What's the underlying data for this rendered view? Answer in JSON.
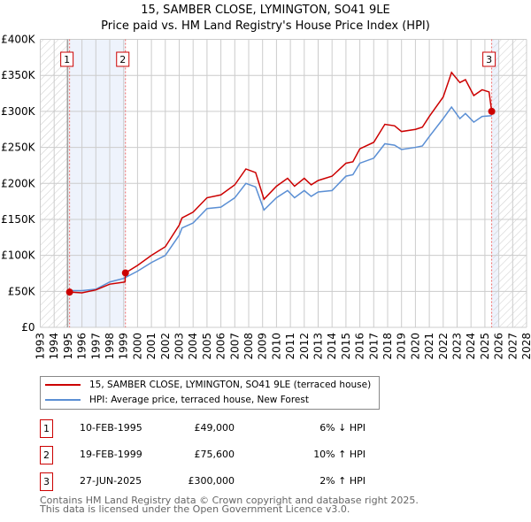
{
  "chart_data": {
    "type": "line",
    "title": "15, SAMBER CLOSE, LYMINGTON, SO41 9LE",
    "subtitle": "Price paid vs. HM Land Registry's House Price Index (HPI)",
    "xlim": [
      1993,
      2028
    ],
    "ylim": [
      0,
      400000
    ],
    "y_ticks": [
      {
        "v": 0,
        "label": "£0"
      },
      {
        "v": 50000,
        "label": "£50K"
      },
      {
        "v": 100000,
        "label": "£100K"
      },
      {
        "v": 150000,
        "label": "£150K"
      },
      {
        "v": 200000,
        "label": "£200K"
      },
      {
        "v": 250000,
        "label": "£250K"
      },
      {
        "v": 300000,
        "label": "£300K"
      },
      {
        "v": 350000,
        "label": "£350K"
      },
      {
        "v": 400000,
        "label": "£400K"
      }
    ],
    "x_ticks": [
      "1993",
      "1994",
      "1995",
      "1996",
      "1997",
      "1998",
      "1999",
      "2000",
      "2001",
      "2002",
      "2003",
      "2004",
      "2005",
      "2006",
      "2007",
      "2008",
      "2009",
      "2010",
      "2011",
      "2012",
      "2013",
      "2014",
      "2015",
      "2016",
      "2017",
      "2018",
      "2019",
      "2020",
      "2021",
      "2022",
      "2023",
      "2024",
      "2025",
      "2026",
      "2027",
      "2028"
    ],
    "grid": true,
    "series": [
      {
        "name": "15, SAMBER CLOSE, LYMINGTON, SO41 9LE (terraced house)",
        "color": "#cc0000",
        "x": [
          1995.11,
          1996,
          1997,
          1998,
          1999.1,
          1999.13,
          2000,
          2001,
          2002,
          2003,
          2003.2,
          2004,
          2005,
          2006,
          2007,
          2007.8,
          2008.5,
          2009.1,
          2010,
          2010.8,
          2011.3,
          2012,
          2012.5,
          2013,
          2014,
          2015,
          2015.5,
          2016,
          2017,
          2017.8,
          2018.5,
          2019,
          2020,
          2020.5,
          2021,
          2022,
          2022.6,
          2023.2,
          2023.6,
          2024.2,
          2024.8,
          2025.3,
          2025.49
        ],
        "y": [
          49000,
          48000,
          52000,
          60000,
          63000,
          75600,
          86000,
          100000,
          112000,
          142000,
          152000,
          160000,
          180000,
          184000,
          198000,
          220000,
          215000,
          178000,
          196000,
          207000,
          196000,
          207000,
          198000,
          204000,
          210000,
          228000,
          230000,
          248000,
          257000,
          282000,
          280000,
          272000,
          275000,
          278000,
          293000,
          320000,
          354000,
          340000,
          344000,
          322000,
          330000,
          327000,
          300000
        ]
      },
      {
        "name": "HPI: Average price, terraced house, New Forest",
        "color": "#5b8fd4",
        "x": [
          1995.11,
          1996,
          1997,
          1998,
          1999,
          2000,
          2001,
          2002,
          2003,
          2003.2,
          2004,
          2005,
          2006,
          2007,
          2007.8,
          2008.5,
          2009.1,
          2010,
          2010.8,
          2011.3,
          2012,
          2012.5,
          2013,
          2014,
          2015,
          2015.5,
          2016,
          2017,
          2017.8,
          2018.5,
          2019,
          2020,
          2020.5,
          2021,
          2022,
          2022.6,
          2023.2,
          2023.6,
          2024.2,
          2024.8,
          2025.49
        ],
        "y": [
          51000,
          51000,
          53000,
          63000,
          68000,
          78000,
          90000,
          100000,
          128000,
          138000,
          145000,
          165000,
          167000,
          180000,
          200000,
          195000,
          163000,
          180000,
          190000,
          180000,
          190000,
          182000,
          188000,
          190000,
          210000,
          212000,
          228000,
          235000,
          255000,
          253000,
          247000,
          250000,
          252000,
          265000,
          290000,
          306000,
          290000,
          297000,
          285000,
          293000,
          294000
        ]
      }
    ],
    "sales": [
      {
        "n": "1",
        "x": 1995.11,
        "price": 49000,
        "date": "10-FEB-1995",
        "price_label": "£49,000",
        "hpi": "6% ↓ HPI"
      },
      {
        "n": "2",
        "x": 1999.13,
        "price": 75600,
        "date": "19-FEB-1999",
        "price_label": "£75,600",
        "hpi": "10% ↑ HPI"
      },
      {
        "n": "3",
        "x": 2025.49,
        "price": 300000,
        "date": "27-JUN-2025",
        "price_label": "£300,000",
        "hpi": "2% ↑ HPI"
      }
    ],
    "legend_placement": "bottom"
  },
  "footer": {
    "line1": "Contains HM Land Registry data © Crown copyright and database right 2025.",
    "line2": "This data is licensed under the Open Government Licence v3.0."
  }
}
